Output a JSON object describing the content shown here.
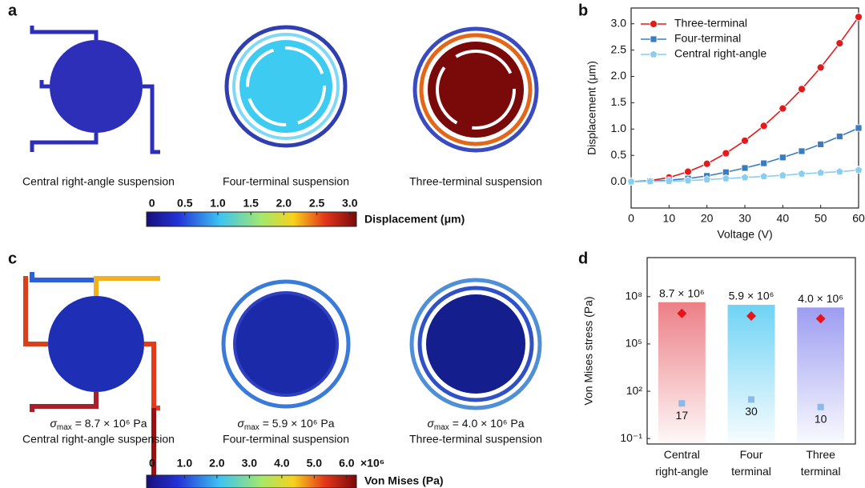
{
  "panel_labels": [
    "a",
    "b",
    "c",
    "d"
  ],
  "panel_a": {
    "captions": [
      "Central right-angle suspension",
      "Four-terminal suspension",
      "Three-terminal suspension"
    ],
    "colorbar": {
      "label": "Displacement (μm)",
      "lim": [
        -0.08,
        3.1
      ],
      "ticks": [
        0,
        {
          "value": 0.5,
          "label": "0.5"
        },
        {
          "value": 1,
          "label": "1.0"
        },
        {
          "value": 1.5,
          "label": "1.5"
        },
        {
          "value": 2,
          "label": "2.0"
        },
        {
          "value": 2.5,
          "label": "2.5"
        },
        {
          "value": 3,
          "label": "3.0"
        }
      ]
    }
  },
  "panel_c": {
    "captions": [
      {
        "symbol": "σ",
        "subscript": "max",
        "rest": " = 8.7 × 10⁶ Pa",
        "name": "Central right-angle suspension"
      },
      {
        "symbol": "σ",
        "subscript": "max",
        "rest": " = 5.9 × 10⁶ Pa",
        "name": "Four-terminal suspension"
      },
      {
        "symbol": "σ",
        "subscript": "max",
        "rest": " = 4.0 × 10⁶ Pa",
        "name": "Three-terminal suspension"
      }
    ],
    "colorbar": {
      "label": "Von Mises (Pa)",
      "multiplier": "×10⁶",
      "lim": [
        -0.17,
        6.3
      ],
      "ticks": [
        0,
        {
          "value": 1,
          "label": "1.0"
        },
        {
          "value": 2,
          "label": "2.0"
        },
        {
          "value": 3,
          "label": "3.0"
        },
        {
          "value": 4,
          "label": "4.0"
        },
        {
          "value": 5,
          "label": "5.0"
        },
        {
          "value": 6,
          "label": "6.0"
        }
      ]
    }
  },
  "chart_data": [
    {
      "type": "line",
      "xlabel": "Voltage (V)",
      "ylabel": "Displacement (μm)",
      "x": [
        0,
        5,
        10,
        15,
        20,
        25,
        30,
        35,
        40,
        45,
        50,
        55,
        60
      ],
      "series": [
        {
          "name": "Three-terminal",
          "color": "#e31a1c",
          "marker": "circle",
          "values": [
            0,
            0.02,
            0.08,
            0.19,
            0.34,
            0.54,
            0.78,
            1.06,
            1.39,
            1.76,
            2.17,
            2.63,
            3.13
          ]
        },
        {
          "name": "Four-terminal",
          "color": "#3a7dbf",
          "marker": "square",
          "values": [
            0,
            0.01,
            0.03,
            0.06,
            0.11,
            0.18,
            0.26,
            0.35,
            0.46,
            0.58,
            0.71,
            0.86,
            1.02
          ]
        },
        {
          "name": "Central right-angle",
          "color": "#89cdf0",
          "marker": "pentagon",
          "values": [
            0,
            0.005,
            0.01,
            0.02,
            0.04,
            0.06,
            0.08,
            0.1,
            0.12,
            0.15,
            0.17,
            0.19,
            0.22
          ]
        }
      ],
      "xlim": [
        0,
        60
      ],
      "xticks": [
        0,
        10,
        20,
        30,
        40,
        50,
        60
      ],
      "ylim": [
        -0.5,
        3.3
      ],
      "yticks": [
        {
          "value": 0,
          "label": "0.0"
        },
        {
          "value": 0.5,
          "label": "0.5"
        },
        {
          "value": 1,
          "label": "1.0"
        },
        {
          "value": 1.5,
          "label": "1.5"
        },
        {
          "value": 2,
          "label": "2.0"
        },
        {
          "value": 2.5,
          "label": "2.5"
        },
        {
          "value": 3,
          "label": "3.0"
        }
      ],
      "legend": "upper-left"
    },
    {
      "type": "bar",
      "ylabel": "Von Mises stress (Pa)",
      "log_scale": true,
      "categories": [
        "Central right-angle",
        "Four terminal",
        "Three terminal"
      ],
      "bar_colors": [
        "#ec7f86",
        "#6fd3f5",
        "#9d9df2"
      ],
      "series": [
        {
          "color": "#e8141b",
          "marker": "diamond",
          "values": [
            8700000,
            5900000,
            4000000
          ],
          "value_labels": [
            "8.7 × 10⁶",
            "5.9 × 10⁶",
            "4.0 × 10⁶"
          ]
        },
        {
          "color": "#8db9e6",
          "marker": "square",
          "values": [
            17,
            30,
            10
          ]
        }
      ],
      "ylim": [
        0.045,
        30000000000
      ],
      "yticks": [
        {
          "value": 0.1,
          "label": "10⁻¹"
        },
        {
          "value": 100,
          "label": "10²"
        },
        {
          "value": 100000,
          "label": "10⁵"
        },
        {
          "value": 100000000,
          "label": "10⁸"
        }
      ]
    }
  ]
}
